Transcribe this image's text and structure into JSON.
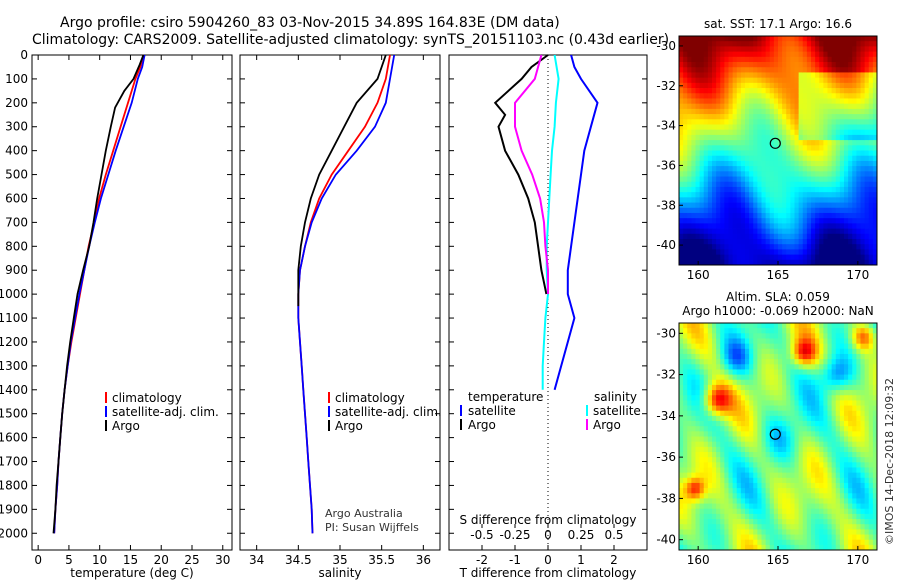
{
  "title_line1": "Argo profile: csiro 5904260_83 03-Nov-2015 34.89S 164.83E (DM data)",
  "title_line2": "Climatology: CARS2009. Satellite-adjusted climatology: synTS_20151103.nc (0.43d earlier)",
  "credit_line1": "Argo Australia",
  "credit_line2": "PI: Susan Wijffels",
  "footer": "©IMOS 14-Dec-2018 12:09:32",
  "colors": {
    "climatology": "#ff0000",
    "satellite": "#0000ff",
    "argo": "#000000",
    "sat_salinity": "#00ffff",
    "argo_salinity": "#ff00ff"
  },
  "chart_data": [
    {
      "type": "line",
      "name": "temperature",
      "xlabel": "temperature (deg C)",
      "ylabel": "",
      "xlim": [
        -1,
        31.5
      ],
      "ylim": [
        2070,
        0
      ],
      "xticks": [
        0,
        5,
        10,
        15,
        20,
        25,
        30
      ],
      "yticks": [
        0,
        100,
        200,
        300,
        400,
        500,
        600,
        700,
        800,
        900,
        1000,
        1100,
        1200,
        1300,
        1400,
        1500,
        1600,
        1700,
        1800,
        1900,
        2000
      ],
      "legend": [
        "climatology",
        "satellite-adj. clim.",
        "Argo"
      ],
      "series": [
        {
          "name": "climatology",
          "color": "#ff0000",
          "points": [
            [
              17.1,
              0
            ],
            [
              16.6,
              50
            ],
            [
              15.8,
              100
            ],
            [
              14.6,
              200
            ],
            [
              13.4,
              300
            ],
            [
              12.2,
              400
            ],
            [
              11.0,
              500
            ],
            [
              9.9,
              600
            ],
            [
              9.1,
              700
            ],
            [
              8.2,
              800
            ],
            [
              7.5,
              900
            ],
            [
              6.8,
              1000
            ],
            [
              6.1,
              1100
            ],
            [
              5.4,
              1200
            ],
            [
              4.8,
              1300
            ],
            [
              4.3,
              1400
            ],
            [
              3.9,
              1500
            ],
            [
              3.6,
              1600
            ],
            [
              3.3,
              1700
            ],
            [
              3.1,
              1800
            ],
            [
              2.8,
              1900
            ],
            [
              2.6,
              2000
            ]
          ]
        },
        {
          "name": "satellite-adj. clim.",
          "color": "#0000ff",
          "points": [
            [
              17.3,
              0
            ],
            [
              16.9,
              50
            ],
            [
              16.2,
              100
            ],
            [
              15.2,
              200
            ],
            [
              13.9,
              300
            ],
            [
              12.6,
              400
            ],
            [
              11.4,
              500
            ],
            [
              10.2,
              600
            ],
            [
              9.2,
              700
            ],
            [
              8.3,
              800
            ],
            [
              7.5,
              900
            ],
            [
              6.7,
              1000
            ],
            [
              6.0,
              1100
            ],
            [
              5.3,
              1200
            ],
            [
              4.8,
              1300
            ],
            [
              4.3,
              1400
            ],
            [
              3.9,
              1500
            ],
            [
              3.6,
              1600
            ],
            [
              3.3,
              1700
            ],
            [
              3.1,
              1800
            ],
            [
              2.8,
              1900
            ],
            [
              2.6,
              2000
            ]
          ]
        },
        {
          "name": "Argo",
          "color": "#000000",
          "points": [
            [
              17.1,
              0
            ],
            [
              16.5,
              40
            ],
            [
              15.5,
              100
            ],
            [
              14.0,
              150
            ],
            [
              12.5,
              220
            ],
            [
              11.8,
              300
            ],
            [
              11.0,
              400
            ],
            [
              10.3,
              500
            ],
            [
              9.6,
              600
            ],
            [
              9.0,
              700
            ],
            [
              8.3,
              800
            ],
            [
              7.3,
              900
            ],
            [
              6.4,
              1000
            ],
            [
              5.8,
              1100
            ],
            [
              5.2,
              1200
            ],
            [
              4.7,
              1300
            ],
            [
              4.3,
              1400
            ],
            [
              3.9,
              1500
            ],
            [
              3.6,
              1600
            ],
            [
              3.3,
              1700
            ],
            [
              3.0,
              1800
            ],
            [
              2.8,
              1900
            ],
            [
              2.5,
              2000
            ]
          ]
        }
      ]
    },
    {
      "type": "line",
      "name": "salinity",
      "xlabel": "salinity",
      "ylabel": "",
      "xlim": [
        33.8,
        36.2
      ],
      "ylim": [
        2070,
        0
      ],
      "xticks": [
        34,
        34.5,
        35,
        35.5,
        36
      ],
      "yticks": [
        0,
        100,
        200,
        300,
        400,
        500,
        600,
        700,
        800,
        900,
        1000,
        1100,
        1200,
        1300,
        1400,
        1500,
        1600,
        1700,
        1800,
        1900,
        2000
      ],
      "legend": [
        "climatology",
        "satellite-adj. clim.",
        "Argo"
      ],
      "series": [
        {
          "name": "climatology",
          "color": "#ff0000",
          "points": [
            [
              35.6,
              0
            ],
            [
              35.55,
              100
            ],
            [
              35.45,
              200
            ],
            [
              35.3,
              300
            ],
            [
              35.1,
              400
            ],
            [
              34.9,
              500
            ],
            [
              34.75,
              600
            ],
            [
              34.65,
              700
            ],
            [
              34.58,
              800
            ],
            [
              34.52,
              900
            ],
            [
              34.5,
              1000
            ],
            [
              34.5,
              1100
            ],
            [
              34.52,
              1200
            ],
            [
              34.54,
              1300
            ],
            [
              34.56,
              1400
            ],
            [
              34.58,
              1500
            ],
            [
              34.6,
              1600
            ],
            [
              34.62,
              1700
            ],
            [
              34.64,
              1800
            ],
            [
              34.66,
              1900
            ],
            [
              34.67,
              2000
            ]
          ]
        },
        {
          "name": "satellite-adj. clim.",
          "color": "#0000ff",
          "points": [
            [
              35.65,
              0
            ],
            [
              35.6,
              100
            ],
            [
              35.55,
              200
            ],
            [
              35.42,
              300
            ],
            [
              35.2,
              400
            ],
            [
              34.95,
              500
            ],
            [
              34.78,
              600
            ],
            [
              34.66,
              700
            ],
            [
              34.58,
              800
            ],
            [
              34.52,
              900
            ],
            [
              34.5,
              1000
            ],
            [
              34.5,
              1100
            ],
            [
              34.52,
              1200
            ],
            [
              34.54,
              1300
            ],
            [
              34.56,
              1400
            ],
            [
              34.58,
              1500
            ],
            [
              34.6,
              1600
            ],
            [
              34.62,
              1700
            ],
            [
              34.64,
              1800
            ],
            [
              34.66,
              1900
            ],
            [
              34.67,
              2000
            ]
          ]
        },
        {
          "name": "Argo",
          "color": "#000000",
          "points": [
            [
              35.55,
              0
            ],
            [
              35.45,
              100
            ],
            [
              35.2,
              200
            ],
            [
              35.05,
              300
            ],
            [
              34.9,
              400
            ],
            [
              34.75,
              500
            ],
            [
              34.65,
              600
            ],
            [
              34.58,
              700
            ],
            [
              34.53,
              800
            ],
            [
              34.5,
              900
            ],
            [
              34.5,
              1000
            ],
            [
              34.5,
              1050
            ]
          ]
        }
      ]
    },
    {
      "type": "line",
      "name": "difference from climatology",
      "xlabel": "T difference from climatology",
      "x2label": "S difference from climatology",
      "xlim": [
        -3,
        3
      ],
      "x2lim": [
        -0.75,
        0.75
      ],
      "ylim": [
        2070,
        0
      ],
      "xticks": [
        -2,
        -1,
        0,
        1,
        2
      ],
      "x2ticks": [
        "-0.5",
        "-0.25",
        "0",
        "0.25",
        "0.5"
      ],
      "legend_temperature_title": "temperature",
      "legend_salinity_title": "salinity",
      "legend_temperature": [
        "satellite",
        "Argo"
      ],
      "legend_salinity": [
        "satellite",
        "Argo"
      ],
      "series": [
        {
          "name": "T satellite",
          "color": "#0000ff",
          "points": [
            [
              0.7,
              0
            ],
            [
              0.8,
              50
            ],
            [
              1.0,
              100
            ],
            [
              1.5,
              200
            ],
            [
              1.3,
              300
            ],
            [
              1.1,
              400
            ],
            [
              1.0,
              500
            ],
            [
              0.9,
              600
            ],
            [
              0.8,
              700
            ],
            [
              0.7,
              800
            ],
            [
              0.6,
              900
            ],
            [
              0.6,
              1000
            ],
            [
              0.8,
              1100
            ],
            [
              0.6,
              1200
            ],
            [
              0.4,
              1300
            ],
            [
              0.2,
              1400
            ]
          ]
        },
        {
          "name": "T Argo",
          "color": "#000000",
          "points": [
            [
              0,
              0
            ],
            [
              -0.5,
              50
            ],
            [
              -0.8,
              100
            ],
            [
              -1.6,
              200
            ],
            [
              -1.3,
              250
            ],
            [
              -1.5,
              300
            ],
            [
              -1.3,
              400
            ],
            [
              -0.9,
              500
            ],
            [
              -0.6,
              600
            ],
            [
              -0.4,
              700
            ],
            [
              -0.3,
              800
            ],
            [
              -0.2,
              900
            ],
            [
              -0.05,
              1000
            ]
          ]
        },
        {
          "name": "S satellite",
          "color": "#00ffff",
          "points": [
            [
              0.05,
              0
            ],
            [
              0.08,
              100
            ],
            [
              0.06,
              200
            ],
            [
              0.05,
              300
            ],
            [
              0.03,
              400
            ],
            [
              0.02,
              500
            ],
            [
              0.01,
              600
            ],
            [
              0.0,
              700
            ],
            [
              -0.01,
              800
            ],
            [
              -0.01,
              900
            ],
            [
              0.0,
              1000
            ],
            [
              -0.02,
              1100
            ],
            [
              -0.03,
              1200
            ],
            [
              -0.04,
              1300
            ],
            [
              -0.04,
              1400
            ]
          ]
        },
        {
          "name": "S Argo",
          "color": "#ff00ff",
          "points": [
            [
              -0.05,
              0
            ],
            [
              -0.1,
              100
            ],
            [
              -0.25,
              200
            ],
            [
              -0.25,
              300
            ],
            [
              -0.2,
              400
            ],
            [
              -0.12,
              500
            ],
            [
              -0.06,
              600
            ],
            [
              -0.03,
              700
            ],
            [
              -0.02,
              800
            ],
            [
              0.0,
              900
            ],
            [
              0.0,
              1000
            ]
          ]
        }
      ]
    },
    {
      "type": "heatmap",
      "name": "sst-map",
      "title": "sat. SST: 17.1 Argo: 16.6",
      "xticks": [
        160,
        165,
        170
      ],
      "yticks": [
        -30,
        -32,
        -34,
        -36,
        -38,
        -40
      ],
      "xlim": [
        158.8,
        171.2
      ],
      "ylim": [
        -41,
        -29.5
      ],
      "marker": [
        164.83,
        -34.89
      ]
    },
    {
      "type": "heatmap",
      "name": "sla-map",
      "title_line1": "Altim. SLA: 0.059",
      "title_line2": "Argo h1000: -0.069 h2000: NaN",
      "xticks": [
        160,
        165,
        170
      ],
      "yticks": [
        -30,
        -32,
        -34,
        -36,
        -38,
        -40
      ],
      "xlim": [
        158.8,
        171.2
      ],
      "ylim": [
        -40.5,
        -29.5
      ],
      "marker": [
        164.83,
        -34.89
      ]
    }
  ]
}
